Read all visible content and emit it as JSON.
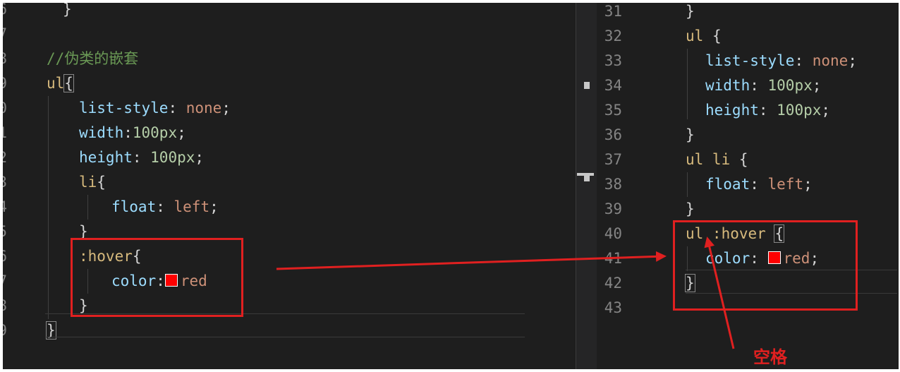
{
  "left_editor": {
    "lines": [
      {
        "no": "6",
        "tokens": [
          {
            "t": "}",
            "c": "t-brace"
          }
        ],
        "indent": 2
      },
      {
        "no": "7",
        "tokens": [],
        "indent": 0
      },
      {
        "no": "8",
        "tokens": [
          {
            "t": "//伪类的嵌套",
            "c": "t-comment"
          }
        ],
        "indent": 0
      },
      {
        "no": "9",
        "tokens": [
          {
            "t": "ul",
            "c": "t-sel"
          },
          {
            "t": "{",
            "c": "t-punc",
            "match": true
          }
        ],
        "indent": 0
      },
      {
        "no": "0",
        "tokens": [
          {
            "t": "list-style",
            "c": "t-prop"
          },
          {
            "t": ": ",
            "c": "t-punc"
          },
          {
            "t": "none",
            "c": "t-val"
          },
          {
            "t": ";",
            "c": "t-punc"
          }
        ],
        "indent": 4
      },
      {
        "no": "1",
        "tokens": [
          {
            "t": "width",
            "c": "t-prop"
          },
          {
            "t": ":",
            "c": "t-punc"
          },
          {
            "t": "100px",
            "c": "t-num"
          },
          {
            "t": ";",
            "c": "t-punc"
          }
        ],
        "indent": 4
      },
      {
        "no": "2",
        "tokens": [
          {
            "t": "height",
            "c": "t-prop"
          },
          {
            "t": ": ",
            "c": "t-punc"
          },
          {
            "t": "100px",
            "c": "t-num"
          },
          {
            "t": ";",
            "c": "t-punc"
          }
        ],
        "indent": 4
      },
      {
        "no": "3",
        "tokens": [
          {
            "t": "li",
            "c": "t-sel"
          },
          {
            "t": "{",
            "c": "t-punc"
          }
        ],
        "indent": 4
      },
      {
        "no": "4",
        "tokens": [
          {
            "t": "float",
            "c": "t-prop"
          },
          {
            "t": ": ",
            "c": "t-punc"
          },
          {
            "t": "left",
            "c": "t-val"
          },
          {
            "t": ";",
            "c": "t-punc"
          }
        ],
        "indent": 8
      },
      {
        "no": "5",
        "tokens": [
          {
            "t": "}",
            "c": "t-punc"
          }
        ],
        "indent": 4
      },
      {
        "no": "6",
        "tokens": [
          {
            "t": ":hover",
            "c": "t-sel"
          },
          {
            "t": "{",
            "c": "t-punc"
          }
        ],
        "indent": 4
      },
      {
        "no": "7",
        "tokens": [
          {
            "t": "color",
            "c": "t-prop"
          },
          {
            "t": ":",
            "c": "t-punc"
          },
          {
            "swatch": true
          },
          {
            "t": "red",
            "c": "t-val"
          }
        ],
        "indent": 8
      },
      {
        "no": "8",
        "tokens": [
          {
            "t": "}",
            "c": "t-punc"
          }
        ],
        "indent": 4
      },
      {
        "no": "9",
        "tokens": [
          {
            "t": "}",
            "c": "t-punc",
            "match": true
          }
        ],
        "indent": 0
      }
    ]
  },
  "right_editor": {
    "lines": [
      {
        "no": "31",
        "tokens": [
          {
            "t": "}",
            "c": "t-punc"
          }
        ],
        "indent": 0
      },
      {
        "no": "32",
        "tokens": [
          {
            "t": "ul",
            "c": "t-sel"
          },
          {
            "t": " {",
            "c": "t-punc"
          }
        ],
        "indent": 0
      },
      {
        "no": "33",
        "tokens": [
          {
            "t": "list-style",
            "c": "t-prop"
          },
          {
            "t": ": ",
            "c": "t-punc"
          },
          {
            "t": "none",
            "c": "t-val"
          },
          {
            "t": ";",
            "c": "t-punc"
          }
        ],
        "indent": 2
      },
      {
        "no": "34",
        "tokens": [
          {
            "t": "width",
            "c": "t-prop"
          },
          {
            "t": ": ",
            "c": "t-punc"
          },
          {
            "t": "100px",
            "c": "t-num"
          },
          {
            "t": ";",
            "c": "t-punc"
          }
        ],
        "indent": 2
      },
      {
        "no": "35",
        "tokens": [
          {
            "t": "height",
            "c": "t-prop"
          },
          {
            "t": ": ",
            "c": "t-punc"
          },
          {
            "t": "100px",
            "c": "t-num"
          },
          {
            "t": ";",
            "c": "t-punc"
          }
        ],
        "indent": 2
      },
      {
        "no": "36",
        "tokens": [
          {
            "t": "}",
            "c": "t-punc"
          }
        ],
        "indent": 0
      },
      {
        "no": "37",
        "tokens": [
          {
            "t": "ul li",
            "c": "t-sel"
          },
          {
            "t": " {",
            "c": "t-punc"
          }
        ],
        "indent": 0
      },
      {
        "no": "38",
        "tokens": [
          {
            "t": "float",
            "c": "t-prop"
          },
          {
            "t": ": ",
            "c": "t-punc"
          },
          {
            "t": "left",
            "c": "t-val"
          },
          {
            "t": ";",
            "c": "t-punc"
          }
        ],
        "indent": 2
      },
      {
        "no": "39",
        "tokens": [
          {
            "t": "}",
            "c": "t-punc"
          }
        ],
        "indent": 0
      },
      {
        "no": "40",
        "tokens": [
          {
            "t": "ul :hover",
            "c": "t-sel"
          },
          {
            "t": " ",
            "c": "t-punc"
          },
          {
            "t": "{",
            "c": "t-punc",
            "match": true
          }
        ],
        "indent": 0
      },
      {
        "no": "41",
        "tokens": [
          {
            "t": "color",
            "c": "t-prop"
          },
          {
            "t": ": ",
            "c": "t-punc"
          },
          {
            "swatch": true
          },
          {
            "t": "red",
            "c": "t-val"
          },
          {
            "t": ";",
            "c": "t-punc"
          }
        ],
        "indent": 2
      },
      {
        "no": "42",
        "tokens": [
          {
            "t": "}",
            "c": "t-punc",
            "match": true
          }
        ],
        "indent": 0
      },
      {
        "no": "43",
        "tokens": [],
        "indent": 0
      }
    ]
  },
  "annotation": {
    "label": "空格",
    "color": "#e02020"
  },
  "colors": {
    "background": "#1e1e1e",
    "selector": "#d7ba7d",
    "property": "#9cdcfe",
    "value": "#ce9178",
    "number": "#b5cea8",
    "comment": "#6a9955",
    "line_number": "#858585"
  }
}
